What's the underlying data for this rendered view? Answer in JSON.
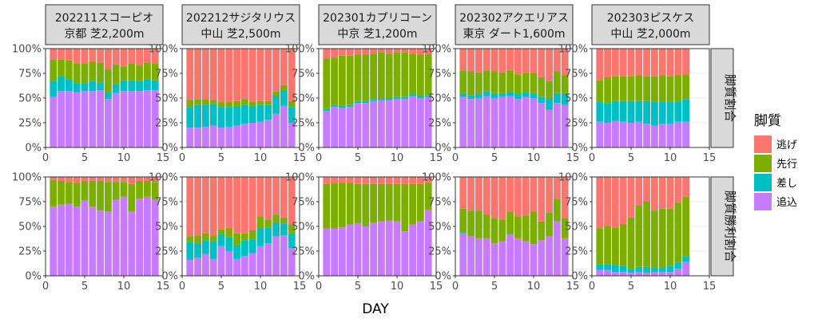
{
  "chart_data": {
    "type": "bar",
    "stacked": true,
    "xlabel": "DAY",
    "ylabel": "",
    "x_ticks": [
      0,
      5,
      10,
      15
    ],
    "y_ticks": [
      "0%",
      "25%",
      "50%",
      "75%",
      "100%"
    ],
    "xlim": [
      0,
      15
    ],
    "ylim": [
      0,
      1
    ],
    "legend": {
      "title": "脚質",
      "position": "right",
      "entries": [
        {
          "name": "逃げ",
          "color": "#F8766D"
        },
        {
          "name": "先行",
          "color": "#7CAE00"
        },
        {
          "name": "差し",
          "color": "#00BFC4"
        },
        {
          "name": "追込",
          "color": "#C77CFF"
        }
      ]
    },
    "column_strips": [
      {
        "line1": "202211スコーピオ",
        "line2": "京都 芝2,200m"
      },
      {
        "line1": "202212サジタリウス",
        "line2": "中山 芝2,500m"
      },
      {
        "line1": "202301カプリコーン",
        "line2": "中京 芝1,200m"
      },
      {
        "line1": "202302アクエリアス",
        "line2": "東京 ダート1,600m"
      },
      {
        "line1": "202303ピスケス",
        "line2": "中山 芝2,000m"
      }
    ],
    "row_strips": [
      "脚質割合",
      "脚質勝利割合"
    ],
    "series_order": [
      "追込",
      "差し",
      "先行",
      "逃げ"
    ],
    "panels": [
      {
        "row": 0,
        "col": 0,
        "days": [
          1,
          2,
          3,
          4,
          5,
          6,
          7,
          8,
          9,
          10,
          11,
          12,
          13,
          14
        ],
        "追込": [
          0.51,
          0.57,
          0.57,
          0.56,
          0.57,
          0.57,
          0.58,
          0.49,
          0.55,
          0.57,
          0.57,
          0.57,
          0.58,
          0.58
        ],
        "差し": [
          0.16,
          0.15,
          0.12,
          0.09,
          0.08,
          0.1,
          0.08,
          0.07,
          0.09,
          0.11,
          0.11,
          0.1,
          0.11,
          0.1
        ],
        "先行": [
          0.22,
          0.17,
          0.19,
          0.2,
          0.2,
          0.2,
          0.2,
          0.23,
          0.2,
          0.14,
          0.17,
          0.16,
          0.17,
          0.17
        ],
        "逃げ": [
          0.11,
          0.11,
          0.12,
          0.15,
          0.15,
          0.13,
          0.14,
          0.21,
          0.16,
          0.18,
          0.15,
          0.17,
          0.14,
          0.15
        ]
      },
      {
        "row": 0,
        "col": 1,
        "days": [
          1,
          2,
          3,
          4,
          5,
          6,
          7,
          8,
          9,
          10,
          11,
          12,
          13,
          14
        ],
        "追込": [
          0.2,
          0.2,
          0.21,
          0.22,
          0.2,
          0.21,
          0.22,
          0.24,
          0.25,
          0.26,
          0.28,
          0.34,
          0.42,
          0.25
        ],
        "差し": [
          0.21,
          0.23,
          0.22,
          0.22,
          0.21,
          0.2,
          0.2,
          0.19,
          0.17,
          0.17,
          0.15,
          0.18,
          0.16,
          0.16
        ],
        "先行": [
          0.07,
          0.06,
          0.06,
          0.04,
          0.05,
          0.05,
          0.05,
          0.06,
          0.04,
          0.04,
          0.04,
          0.05,
          0.05,
          0.06
        ],
        "逃げ": [
          0.52,
          0.51,
          0.51,
          0.52,
          0.54,
          0.54,
          0.53,
          0.51,
          0.54,
          0.53,
          0.53,
          0.43,
          0.37,
          0.53
        ]
      },
      {
        "row": 0,
        "col": 2,
        "days": [
          1,
          2,
          3,
          4,
          5,
          6,
          7,
          8,
          9,
          10,
          11,
          12,
          13,
          14
        ],
        "追込": [
          0.37,
          0.41,
          0.4,
          0.41,
          0.45,
          0.45,
          0.47,
          0.48,
          0.48,
          0.49,
          0.49,
          0.52,
          0.5,
          0.51
        ],
        "差し": [
          0.02,
          0.02,
          0.02,
          0.02,
          0.02,
          0.02,
          0.02,
          0.02,
          0.02,
          0.02,
          0.02,
          0.02,
          0.02,
          0.02
        ],
        "先行": [
          0.51,
          0.48,
          0.51,
          0.5,
          0.47,
          0.47,
          0.46,
          0.46,
          0.45,
          0.45,
          0.45,
          0.41,
          0.42,
          0.41
        ],
        "逃げ": [
          0.1,
          0.09,
          0.07,
          0.07,
          0.06,
          0.06,
          0.05,
          0.04,
          0.05,
          0.04,
          0.04,
          0.05,
          0.06,
          0.06
        ]
      },
      {
        "row": 0,
        "col": 3,
        "days": [
          1,
          2,
          3,
          4,
          5,
          6,
          7,
          8,
          9,
          10,
          11,
          12,
          13,
          14
        ],
        "追込": [
          0.51,
          0.49,
          0.5,
          0.52,
          0.5,
          0.51,
          0.52,
          0.49,
          0.51,
          0.5,
          0.45,
          0.38,
          0.45,
          0.43
        ],
        "差し": [
          0.04,
          0.04,
          0.04,
          0.05,
          0.05,
          0.04,
          0.04,
          0.05,
          0.05,
          0.05,
          0.06,
          0.12,
          0.1,
          0.12
        ],
        "先行": [
          0.23,
          0.24,
          0.22,
          0.21,
          0.22,
          0.21,
          0.22,
          0.2,
          0.19,
          0.2,
          0.2,
          0.17,
          0.22,
          0.18
        ],
        "逃げ": [
          0.22,
          0.23,
          0.24,
          0.22,
          0.23,
          0.24,
          0.22,
          0.26,
          0.25,
          0.25,
          0.29,
          0.33,
          0.23,
          0.27
        ]
      },
      {
        "row": 0,
        "col": 4,
        "days": [
          1,
          2,
          3,
          4,
          5,
          6,
          7,
          8,
          9,
          10,
          11,
          12
        ],
        "追込": [
          0.26,
          0.25,
          0.27,
          0.26,
          0.25,
          0.26,
          0.24,
          0.22,
          0.24,
          0.24,
          0.26,
          0.26
        ],
        "差し": [
          0.2,
          0.2,
          0.2,
          0.21,
          0.22,
          0.21,
          0.23,
          0.24,
          0.22,
          0.22,
          0.2,
          0.23
        ],
        "先行": [
          0.22,
          0.26,
          0.25,
          0.25,
          0.25,
          0.26,
          0.25,
          0.26,
          0.27,
          0.26,
          0.27,
          0.25
        ],
        "逃げ": [
          0.32,
          0.29,
          0.28,
          0.28,
          0.28,
          0.27,
          0.28,
          0.28,
          0.27,
          0.28,
          0.27,
          0.26
        ]
      },
      {
        "row": 1,
        "col": 0,
        "days": [
          1,
          2,
          3,
          4,
          5,
          6,
          7,
          8,
          9,
          10,
          11,
          12,
          13,
          14
        ],
        "追込": [
          0.7,
          0.72,
          0.73,
          0.7,
          0.76,
          0.7,
          0.66,
          0.65,
          0.77,
          0.8,
          0.65,
          0.78,
          0.8,
          0.77
        ],
        "差し": [
          0.0,
          0.0,
          0.0,
          0.0,
          0.0,
          0.0,
          0.0,
          0.0,
          0.0,
          0.0,
          0.0,
          0.0,
          0.0,
          0.0
        ],
        "先行": [
          0.27,
          0.24,
          0.22,
          0.24,
          0.2,
          0.26,
          0.3,
          0.3,
          0.18,
          0.15,
          0.28,
          0.18,
          0.16,
          0.18
        ],
        "逃げ": [
          0.03,
          0.04,
          0.05,
          0.06,
          0.04,
          0.04,
          0.04,
          0.05,
          0.05,
          0.05,
          0.07,
          0.04,
          0.04,
          0.05
        ]
      },
      {
        "row": 1,
        "col": 1,
        "days": [
          1,
          2,
          3,
          4,
          5,
          6,
          7,
          8,
          9,
          10,
          11,
          12,
          13,
          14
        ],
        "追込": [
          0.16,
          0.18,
          0.22,
          0.17,
          0.3,
          0.25,
          0.17,
          0.2,
          0.23,
          0.3,
          0.33,
          0.4,
          0.41,
          0.28
        ],
        "差し": [
          0.18,
          0.15,
          0.14,
          0.18,
          0.12,
          0.14,
          0.14,
          0.16,
          0.14,
          0.18,
          0.16,
          0.14,
          0.12,
          0.15
        ],
        "先行": [
          0.06,
          0.08,
          0.07,
          0.06,
          0.05,
          0.09,
          0.12,
          0.07,
          0.09,
          0.12,
          0.08,
          0.08,
          0.06,
          0.09
        ],
        "逃げ": [
          0.6,
          0.59,
          0.57,
          0.59,
          0.53,
          0.52,
          0.57,
          0.57,
          0.54,
          0.4,
          0.43,
          0.38,
          0.41,
          0.48
        ]
      },
      {
        "row": 1,
        "col": 2,
        "days": [
          1,
          2,
          3,
          4,
          5,
          6,
          7,
          8,
          9,
          10,
          11,
          12,
          13,
          14
        ],
        "追込": [
          0.48,
          0.48,
          0.49,
          0.52,
          0.53,
          0.5,
          0.54,
          0.55,
          0.56,
          0.55,
          0.45,
          0.52,
          0.55,
          0.67
        ],
        "差し": [
          0.0,
          0.0,
          0.0,
          0.0,
          0.0,
          0.0,
          0.0,
          0.0,
          0.0,
          0.0,
          0.0,
          0.0,
          0.0,
          0.0
        ],
        "先行": [
          0.45,
          0.46,
          0.45,
          0.42,
          0.4,
          0.43,
          0.39,
          0.38,
          0.37,
          0.38,
          0.48,
          0.41,
          0.38,
          0.27
        ],
        "逃げ": [
          0.07,
          0.06,
          0.06,
          0.06,
          0.07,
          0.07,
          0.07,
          0.07,
          0.07,
          0.07,
          0.07,
          0.07,
          0.07,
          0.06
        ]
      },
      {
        "row": 1,
        "col": 3,
        "days": [
          1,
          2,
          3,
          4,
          5,
          6,
          7,
          8,
          9,
          10,
          11,
          12,
          13,
          14
        ],
        "追込": [
          0.43,
          0.4,
          0.38,
          0.38,
          0.33,
          0.35,
          0.42,
          0.38,
          0.35,
          0.32,
          0.36,
          0.4,
          0.55,
          0.38
        ],
        "差し": [
          0.01,
          0.0,
          0.0,
          0.0,
          0.0,
          0.0,
          0.0,
          0.0,
          0.0,
          0.0,
          0.0,
          0.0,
          0.0,
          0.0
        ],
        "先行": [
          0.24,
          0.26,
          0.28,
          0.24,
          0.25,
          0.22,
          0.23,
          0.22,
          0.26,
          0.33,
          0.19,
          0.24,
          0.23,
          0.2
        ],
        "逃げ": [
          0.32,
          0.34,
          0.34,
          0.38,
          0.42,
          0.43,
          0.35,
          0.4,
          0.39,
          0.35,
          0.45,
          0.36,
          0.22,
          0.42
        ]
      },
      {
        "row": 1,
        "col": 4,
        "days": [
          1,
          2,
          3,
          4,
          5,
          6,
          7,
          8,
          9,
          10,
          11,
          12
        ],
        "追込": [
          0.06,
          0.06,
          0.04,
          0.04,
          0.03,
          0.04,
          0.03,
          0.04,
          0.04,
          0.04,
          0.07,
          0.14
        ],
        "差し": [
          0.06,
          0.06,
          0.07,
          0.06,
          0.04,
          0.05,
          0.06,
          0.04,
          0.04,
          0.06,
          0.06,
          0.06
        ],
        "先行": [
          0.36,
          0.38,
          0.38,
          0.42,
          0.52,
          0.62,
          0.66,
          0.58,
          0.6,
          0.58,
          0.61,
          0.6
        ],
        "逃げ": [
          0.52,
          0.5,
          0.51,
          0.48,
          0.41,
          0.29,
          0.25,
          0.34,
          0.32,
          0.32,
          0.26,
          0.2
        ]
      }
    ]
  }
}
